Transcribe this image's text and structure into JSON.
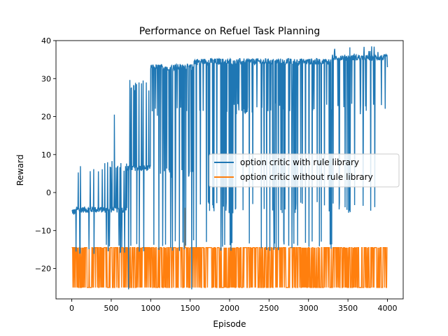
{
  "chart_data": {
    "type": "line",
    "title": "Performance on Refuel Task Planning",
    "xlabel": "Episode",
    "ylabel": "Reward",
    "xlim": [
      -200,
      4200
    ],
    "ylim": [
      -28,
      40
    ],
    "xticks": [
      0,
      500,
      1000,
      1500,
      2000,
      2500,
      3000,
      3500,
      4000
    ],
    "yticks": [
      -20,
      -10,
      0,
      10,
      20,
      30,
      40
    ],
    "legend_position": "center-right",
    "series": [
      {
        "name": "option critic with rule library",
        "color": "#1f77b4",
        "phases": [
          {
            "x": [
              0,
              50
            ],
            "baseline": -5,
            "spikes": [
              -15,
              -5,
              5
            ]
          },
          {
            "x": [
              50,
              700
            ],
            "baseline": -4.5,
            "spikes": [
              -15,
              6.5,
              7
            ]
          },
          {
            "x": [
              700,
              1000
            ],
            "baseline": 6.5,
            "spikes": [
              -15,
              29,
              28
            ]
          },
          {
            "x": [
              1000,
              1550
            ],
            "baseline": 33,
            "spikes": [
              -14,
              5,
              21
            ]
          },
          {
            "x": [
              1550,
              3300
            ],
            "baseline": 34.5,
            "spikes": [
              -14,
              -4,
              22
            ]
          },
          {
            "x": [
              3300,
              4000
            ],
            "baseline": 35.5,
            "spikes": [
              -4,
              22,
              37
            ]
          }
        ],
        "notable_points": [
          {
            "x": 540,
            "y": 20.5
          },
          {
            "x": 720,
            "y": -25.5
          },
          {
            "x": 1520,
            "y": -25.5
          },
          {
            "x": 3880,
            "y": 37
          }
        ]
      },
      {
        "name": "option critic without rule library",
        "color": "#ff7f0e",
        "x_range": [
          0,
          4000
        ],
        "levels": [
          -25,
          -14.5
        ],
        "notable_points": [
          {
            "x": 1430,
            "y": -4
          }
        ]
      }
    ]
  }
}
